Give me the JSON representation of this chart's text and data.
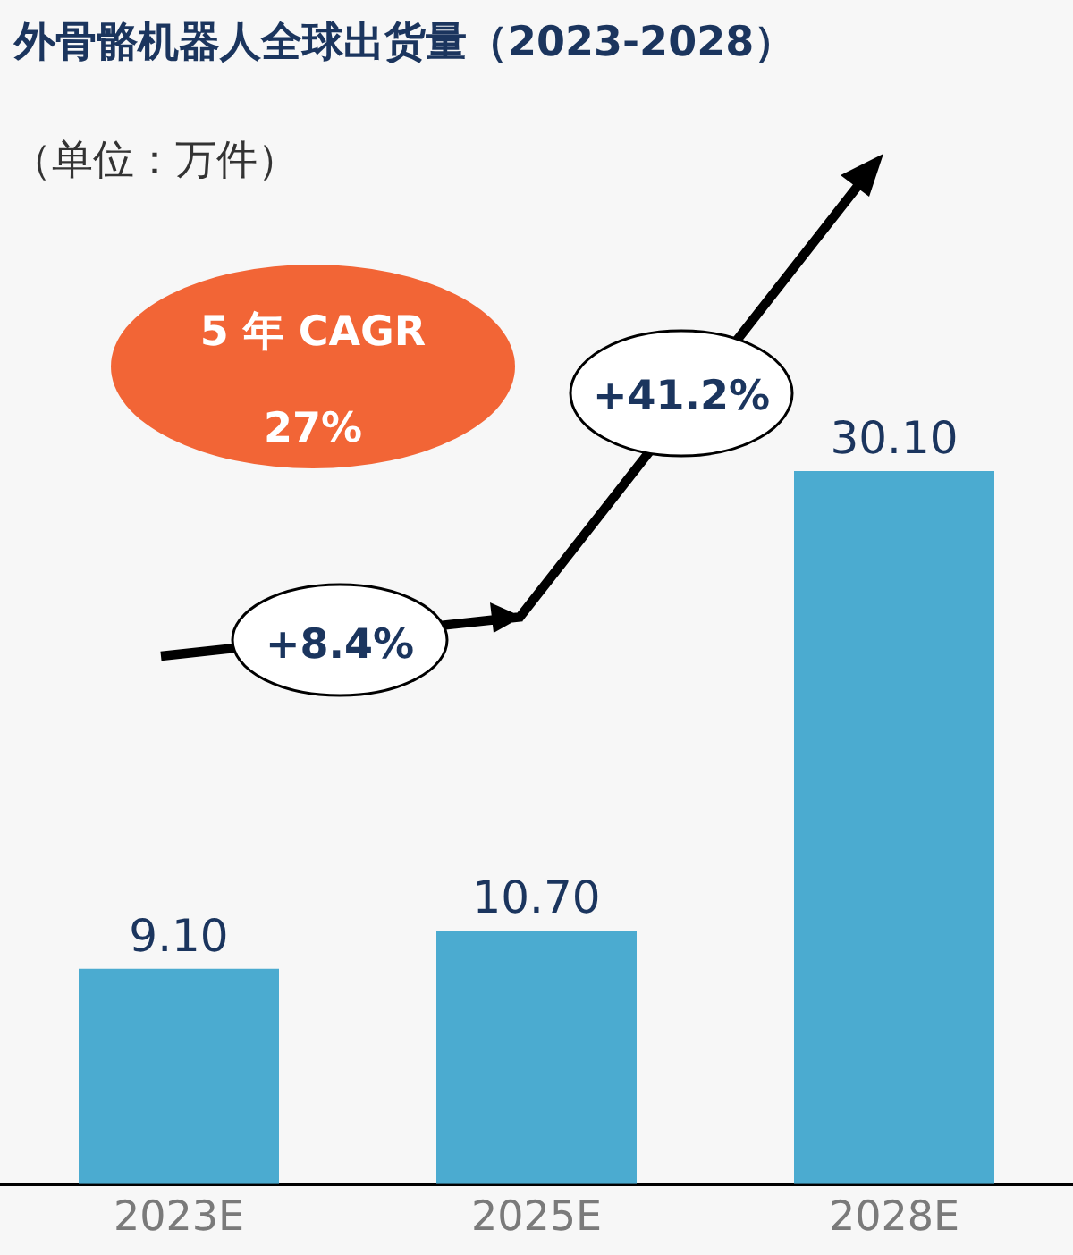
{
  "chart_data": {
    "type": "bar",
    "title": "外骨骼机器人全球出货量（2023-2028）",
    "subtitle": "（单位：万件）",
    "categories": [
      "2023E",
      "2025E",
      "2028E"
    ],
    "values": [
      9.1,
      10.7,
      30.1
    ],
    "value_labels": [
      "9.10",
      "10.70",
      "30.10"
    ],
    "color": "#4babd0",
    "annotations": [
      "5 年 CAGR",
      "27%",
      "+8.4%",
      "+41.2%"
    ],
    "grid": false,
    "legend": false
  }
}
